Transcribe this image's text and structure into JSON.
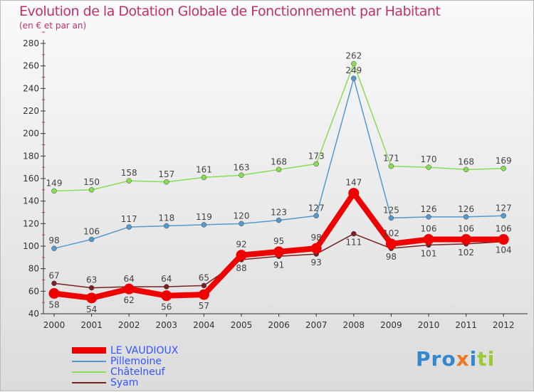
{
  "chart_data": {
    "type": "line",
    "title": "Evolution de la Dotation Globale de Fonctionnement par Habitant",
    "subtitle": "(en € et par an)",
    "x": [
      "2000",
      "2001",
      "2002",
      "2003",
      "2004",
      "2005",
      "2006",
      "2007",
      "2008",
      "2009",
      "2010",
      "2011",
      "2012"
    ],
    "ylim": [
      40,
      280
    ],
    "yticks": [
      40,
      60,
      80,
      100,
      120,
      140,
      160,
      180,
      200,
      220,
      240,
      260,
      280
    ],
    "legend_position": "bottom-left",
    "series": [
      {
        "name": "LE VAUDIOUX",
        "color": "#ee0000",
        "values": [
          58,
          54,
          62,
          56,
          57,
          92,
          95,
          98,
          147,
          102,
          106,
          106,
          106
        ]
      },
      {
        "name": "Pillemoine",
        "color": "#5599cc",
        "values": [
          98,
          106,
          117,
          118,
          119,
          120,
          123,
          127,
          249,
          125,
          126,
          126,
          127
        ]
      },
      {
        "name": "Châtelneuf",
        "color": "#88dd55",
        "values": [
          149,
          150,
          158,
          157,
          161,
          163,
          168,
          173,
          262,
          171,
          170,
          168,
          169
        ]
      },
      {
        "name": "Syam",
        "color": "#772222",
        "values": [
          67,
          63,
          64,
          64,
          65,
          88,
          91,
          93,
          111,
          98,
          101,
          102,
          104
        ]
      }
    ]
  },
  "logo": "Proxiti"
}
